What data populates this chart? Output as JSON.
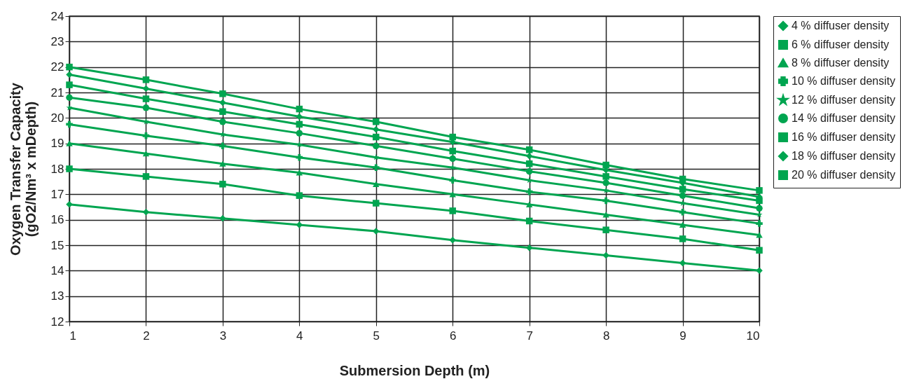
{
  "chart_data": {
    "type": "line",
    "xlabel": "Submersion Depth (m)",
    "ylabel": "Oxygen Transfer Capacity\n(gO2/Nm³ x mDepth)",
    "x": [
      1,
      2,
      3,
      4,
      5,
      6,
      7,
      8,
      9,
      10
    ],
    "xlim": [
      1,
      10
    ],
    "xticks": [
      1,
      2,
      3,
      4,
      5,
      6,
      7,
      8,
      9,
      10
    ],
    "ylim": [
      12,
      24
    ],
    "yticks": [
      12,
      13,
      14,
      15,
      16,
      17,
      18,
      19,
      20,
      21,
      22,
      23,
      24
    ],
    "grid": true,
    "legend": "top right",
    "line_style": "solid",
    "series": [
      {
        "name": "4 % diffuser density",
        "color": "#00a550",
        "marker": "diamond",
        "values": [
          16.6,
          16.3,
          16.05,
          15.8,
          15.55,
          15.2,
          14.9,
          14.6,
          14.3,
          14.0
        ]
      },
      {
        "name": "6 % diffuser density",
        "color": "#00a550",
        "marker": "square",
        "values": [
          18.0,
          17.7,
          17.4,
          16.95,
          16.65,
          16.35,
          15.95,
          15.6,
          15.25,
          14.8
        ]
      },
      {
        "name": "8 % diffuser density",
        "color": "#00a550",
        "marker": "triangle",
        "values": [
          19.0,
          18.6,
          18.2,
          17.85,
          17.4,
          17.0,
          16.6,
          16.2,
          15.8,
          15.4
        ]
      },
      {
        "name": "10 % diffuser density",
        "color": "#00a550",
        "marker": "cross",
        "values": [
          19.75,
          19.3,
          18.9,
          18.45,
          18.05,
          17.55,
          17.1,
          16.75,
          16.3,
          15.85
        ]
      },
      {
        "name": "12 % diffuser density",
        "color": "#00a550",
        "marker": "star",
        "values": [
          20.4,
          19.85,
          19.35,
          18.95,
          18.45,
          18.05,
          17.55,
          17.15,
          16.65,
          16.2
        ]
      },
      {
        "name": "14 % diffuser density",
        "color": "#00a550",
        "marker": "circle",
        "values": [
          20.8,
          20.4,
          19.85,
          19.4,
          18.9,
          18.4,
          17.9,
          17.45,
          16.95,
          16.45
        ]
      },
      {
        "name": "16 % diffuser density",
        "color": "#00a550",
        "marker": "square",
        "values": [
          21.3,
          20.75,
          20.25,
          19.75,
          19.25,
          18.7,
          18.2,
          17.7,
          17.2,
          16.75
        ]
      },
      {
        "name": "18 % diffuser density",
        "color": "#00a550",
        "marker": "diamond",
        "values": [
          21.7,
          21.15,
          20.6,
          20.05,
          19.55,
          19.05,
          18.5,
          17.95,
          17.45,
          16.9
        ]
      },
      {
        "name": "20 % diffuser density",
        "color": "#00a550",
        "marker": "square",
        "values": [
          22.0,
          21.5,
          20.95,
          20.35,
          19.85,
          19.25,
          18.75,
          18.15,
          17.6,
          17.15
        ]
      }
    ]
  }
}
